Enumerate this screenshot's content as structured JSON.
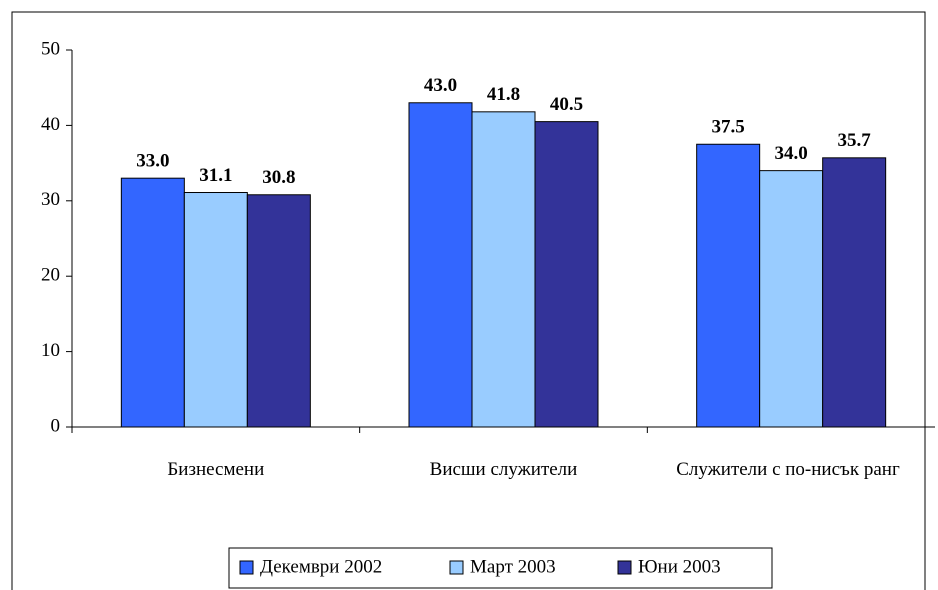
{
  "chart_data": {
    "type": "bar",
    "categories": [
      "Бизнесмени",
      "Висши служители",
      "Служители с по-нисък ранг"
    ],
    "series": [
      {
        "name": "Декември 2002",
        "color": "#3366ff",
        "values": [
          33.0,
          43.0,
          37.5
        ],
        "value_labels": [
          "33.0",
          "43.0",
          "37.5"
        ]
      },
      {
        "name": "Март 2003",
        "color": "#99ccff",
        "values": [
          31.1,
          41.8,
          34.0
        ],
        "value_labels": [
          "31.1",
          "41.8",
          "34.0"
        ]
      },
      {
        "name": "Юни 2003",
        "color": "#333399",
        "values": [
          30.8,
          40.5,
          35.7
        ],
        "value_labels": [
          "30.8",
          "40.5",
          "35.7"
        ]
      }
    ],
    "ylim": [
      0,
      50
    ],
    "yticks": [
      0,
      10,
      20,
      30,
      40,
      50
    ],
    "grid": false,
    "legend": "bottom"
  }
}
